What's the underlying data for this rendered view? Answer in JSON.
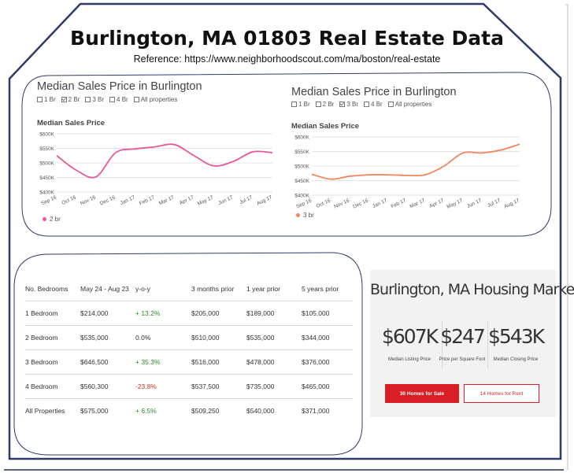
{
  "slide": {
    "title": "Burlington, MA 01803 Real Estate Data",
    "reference": "Reference: https://www.neighborhoodscout.com/ma/boston/real-estate"
  },
  "colors": {
    "frame_border": "#2f3a66",
    "line_2br": "#e8589a",
    "line_3br": "#f4855e",
    "accent_red": "#d81f26",
    "positive": "#2c8a2c",
    "negative": "#c0392b"
  },
  "chart_left": {
    "panel_title": "Median Sales Price in Burlington",
    "filters": [
      {
        "label": "1 Br",
        "checked": false
      },
      {
        "label": "2 Br",
        "checked": true
      },
      {
        "label": "3 Br",
        "checked": false
      },
      {
        "label": "4 Br",
        "checked": false
      },
      {
        "label": "All properties",
        "checked": false
      }
    ],
    "legend": "2 br"
  },
  "chart_right": {
    "panel_title": "Median Sales Price in Burlington",
    "filters": [
      {
        "label": "1 Br",
        "checked": false
      },
      {
        "label": "2 Br",
        "checked": false
      },
      {
        "label": "3 Br",
        "checked": true
      },
      {
        "label": "4 Br",
        "checked": false
      },
      {
        "label": "All properties",
        "checked": false
      }
    ],
    "legend": "3 br"
  },
  "chart_data": [
    {
      "type": "line",
      "title": "Median Sales Price",
      "categories": [
        "Sep 16",
        "Oct 16",
        "Nov 16",
        "Dec 16",
        "Jan 17",
        "Feb 17",
        "Mar 17",
        "Apr 17",
        "May 17",
        "Jun 17",
        "Jul 17",
        "Aug 17"
      ],
      "y_ticks": [
        "$400K",
        "$450K",
        "$500K",
        "$550K",
        "$600K"
      ],
      "ylim": [
        400,
        600
      ],
      "grid": true,
      "legend": "bottom-left",
      "series": [
        {
          "name": "2 br",
          "values": [
            525,
            475,
            452,
            535,
            548,
            555,
            563,
            525,
            490,
            505,
            538,
            535
          ]
        }
      ]
    },
    {
      "type": "line",
      "title": "Median Sales Price",
      "categories": [
        "Sep 16",
        "Oct 16",
        "Nov 16",
        "Dec 16",
        "Jan 17",
        "Feb 17",
        "Mar 17",
        "Apr 17",
        "May 17",
        "Jun 17",
        "Jul 17",
        "Aug 17"
      ],
      "y_ticks": [
        "$400K",
        "$450K",
        "$500K",
        "$550K",
        "$600K"
      ],
      "ylim": [
        400,
        600
      ],
      "grid": true,
      "legend": "bottom-left",
      "series": [
        {
          "name": "3 br",
          "values": [
            472,
            455,
            465,
            470,
            470,
            468,
            470,
            500,
            545,
            545,
            555,
            575
          ]
        }
      ]
    }
  ],
  "table": {
    "headers": [
      "No. Bedrooms",
      "May 24 - Aug 23",
      "y-o-y",
      "3 months prior",
      "1 year prior",
      "5 years prior"
    ],
    "rows": [
      [
        "1 Bedroom",
        "$214,000",
        "+ 13.2%",
        "$205,000",
        "$189,000",
        "$105,000"
      ],
      [
        "2 Bedroom",
        "$535,000",
        "0.0%",
        "$510,000",
        "$535,000",
        "$344,000"
      ],
      [
        "3 Bedroom",
        "$646,500",
        "+ 35.3%",
        "$516,000",
        "$478,000",
        "$376,000"
      ],
      [
        "4 Bedroom",
        "$560,300",
        "-23.8%",
        "$537,500",
        "$735,000",
        "$465,000"
      ],
      [
        "All Properties",
        "$575,000",
        "+ 6.5%",
        "$509,250",
        "$540,000",
        "$371,000"
      ]
    ],
    "yoy_trend": [
      "pos",
      "flat",
      "pos",
      "neg",
      "pos"
    ]
  },
  "market": {
    "title": "Burlington, MA Housing Market",
    "info_icon": "info-icon",
    "stats": [
      {
        "value": "$607K",
        "label": "Median Listing Price"
      },
      {
        "value": "$247",
        "label": "Price per Square Foot"
      },
      {
        "value": "$543K",
        "label": "Median Closing Price"
      }
    ],
    "sale_button": "30 Homes for Sale",
    "rent_button": "14 Homes for Rent"
  }
}
